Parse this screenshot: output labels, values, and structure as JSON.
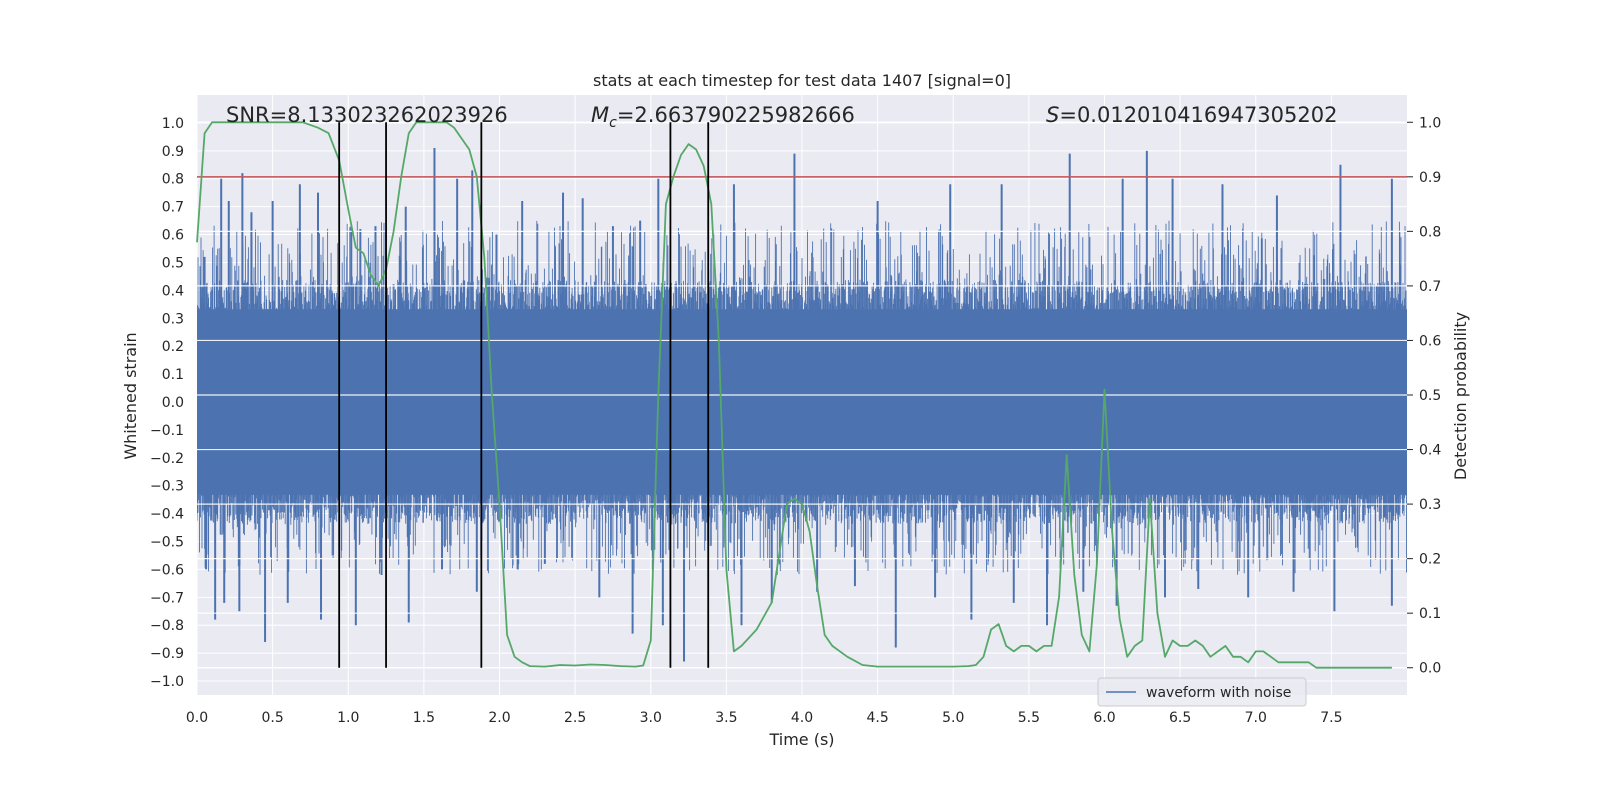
{
  "chart_data": {
    "type": "line",
    "title": "stats at each timestep for test data 1407 [signal=0]",
    "xlabel": "Time (s)",
    "ylabel_left": "Whitened strain",
    "ylabel_right": "Detection probability",
    "xlim": [
      0.0,
      8.0
    ],
    "ylim_left": [
      -1.05,
      1.1
    ],
    "ylim_right": [
      -0.05,
      1.05
    ],
    "xticks": [
      0.0,
      0.5,
      1.0,
      1.5,
      2.0,
      2.5,
      3.0,
      3.5,
      4.0,
      4.5,
      5.0,
      5.5,
      6.0,
      6.5,
      7.0,
      7.5
    ],
    "xtick_labels": [
      "0.0",
      "0.5",
      "1.0",
      "1.5",
      "2.0",
      "2.5",
      "3.0",
      "3.5",
      "4.0",
      "4.5",
      "5.0",
      "5.5",
      "6.0",
      "6.5",
      "7.0",
      "7.5"
    ],
    "yticks_left": [
      -1.0,
      -0.9,
      -0.8,
      -0.7,
      -0.6,
      -0.5,
      -0.4,
      -0.3,
      -0.2,
      -0.1,
      0.0,
      0.1,
      0.2,
      0.3,
      0.4,
      0.5,
      0.6,
      0.7,
      0.8,
      0.9,
      1.0
    ],
    "ytick_labels_left": [
      "−1.0",
      "−0.9",
      "−0.8",
      "−0.7",
      "−0.6",
      "−0.5",
      "−0.4",
      "−0.3",
      "−0.2",
      "−0.1",
      "0.0",
      "0.1",
      "0.2",
      "0.3",
      "0.4",
      "0.5",
      "0.6",
      "0.7",
      "0.8",
      "0.9",
      "1.0"
    ],
    "yticks_right": [
      0.0,
      0.1,
      0.2,
      0.3,
      0.4,
      0.5,
      0.6,
      0.7,
      0.8,
      0.9,
      1.0
    ],
    "ytick_labels_right": [
      "0.0",
      "0.1",
      "0.2",
      "0.3",
      "0.4",
      "0.5",
      "0.6",
      "0.7",
      "0.8",
      "0.9",
      "1.0"
    ],
    "grid": true,
    "legend_position": "lower-right",
    "annotations": {
      "snr": "SNR=8.133023262023926",
      "mc_symbol": "M",
      "mc_sub": "c",
      "mc_value": "=2.663790225982666",
      "s_symbol": "S",
      "s_value": "=0.012010416947305202"
    },
    "threshold": {
      "axis": "right",
      "value": 0.9,
      "color": "#c44e52"
    },
    "vertical_lines": {
      "x": [
        0.94,
        1.25,
        1.88,
        3.13,
        3.38
      ],
      "y_range_right": [
        0.0,
        1.0
      ],
      "color": "#000000"
    },
    "series": [
      {
        "name": "waveform with noise",
        "axis": "left",
        "color": "#4c72b0",
        "envelope_note": "dense noise bars",
        "bulk_amplitude": 0.35,
        "peak_x": [
          0.05,
          0.16,
          0.21,
          0.3,
          0.36,
          0.5,
          0.68,
          0.8,
          1.02,
          1.08,
          1.18,
          1.38,
          1.57,
          1.72,
          1.82,
          1.98,
          2.15,
          2.42,
          2.55,
          2.75,
          2.93,
          3.05,
          3.55,
          3.95,
          4.5,
          4.98,
          5.32,
          5.77,
          6.12,
          6.28,
          6.45,
          6.78,
          7.14,
          7.56,
          7.9
        ],
        "peak_y": [
          0.52,
          0.8,
          0.72,
          0.82,
          0.68,
          0.72,
          0.78,
          0.75,
          0.63,
          0.62,
          0.63,
          0.7,
          0.91,
          0.8,
          0.83,
          0.6,
          0.72,
          0.75,
          0.73,
          0.63,
          0.65,
          0.8,
          0.78,
          0.89,
          0.72,
          0.78,
          0.78,
          0.89,
          0.8,
          0.9,
          0.8,
          0.78,
          0.74,
          0.85,
          0.8
        ],
        "trough_x": [
          0.06,
          0.12,
          0.18,
          0.28,
          0.45,
          0.6,
          0.82,
          1.05,
          1.22,
          1.4,
          1.62,
          1.85,
          2.12,
          2.3,
          2.66,
          2.88,
          3.08,
          3.22,
          3.6,
          3.8,
          4.1,
          4.35,
          4.62,
          4.88,
          5.12,
          5.4,
          5.62,
          5.86,
          6.08,
          6.4,
          6.62,
          6.95,
          7.25,
          7.52,
          7.9
        ],
        "trough_y": [
          -0.6,
          -0.78,
          -0.72,
          -0.75,
          -0.86,
          -0.72,
          -0.78,
          -0.8,
          -0.62,
          -0.79,
          -0.6,
          -0.68,
          -0.6,
          -0.58,
          -0.7,
          -0.83,
          -0.8,
          -0.93,
          -0.8,
          -0.72,
          -0.68,
          -0.66,
          -0.88,
          -0.7,
          -0.78,
          -0.72,
          -0.8,
          -0.68,
          -0.73,
          -0.7,
          -0.67,
          -0.7,
          -0.68,
          -0.75,
          -0.73
        ]
      },
      {
        "name": "",
        "axis": "right",
        "color": "#55a868",
        "x": [
          0.0,
          0.05,
          0.1,
          0.2,
          0.3,
          0.4,
          0.5,
          0.6,
          0.7,
          0.8,
          0.87,
          0.94,
          1.0,
          1.05,
          1.1,
          1.15,
          1.2,
          1.25,
          1.3,
          1.35,
          1.4,
          1.45,
          1.5,
          1.55,
          1.6,
          1.65,
          1.7,
          1.75,
          1.8,
          1.85,
          1.9,
          1.95,
          2.0,
          2.05,
          2.1,
          2.15,
          2.2,
          2.3,
          2.4,
          2.5,
          2.6,
          2.7,
          2.8,
          2.9,
          2.95,
          3.0,
          3.05,
          3.1,
          3.15,
          3.2,
          3.25,
          3.3,
          3.35,
          3.4,
          3.45,
          3.5,
          3.55,
          3.6,
          3.7,
          3.8,
          3.9,
          3.95,
          4.0,
          4.05,
          4.1,
          4.15,
          4.2,
          4.3,
          4.4,
          4.5,
          4.6,
          4.7,
          4.8,
          4.9,
          5.0,
          5.1,
          5.15,
          5.2,
          5.25,
          5.3,
          5.35,
          5.4,
          5.45,
          5.5,
          5.55,
          5.6,
          5.65,
          5.7,
          5.75,
          5.8,
          5.85,
          5.9,
          5.95,
          6.0,
          6.05,
          6.1,
          6.15,
          6.2,
          6.25,
          6.3,
          6.35,
          6.4,
          6.45,
          6.5,
          6.55,
          6.6,
          6.65,
          6.7,
          6.75,
          6.8,
          6.85,
          6.9,
          6.95,
          7.0,
          7.05,
          7.1,
          7.15,
          7.2,
          7.25,
          7.3,
          7.35,
          7.4,
          7.5,
          7.6,
          7.7,
          7.8,
          7.9
        ],
        "y": [
          0.78,
          0.98,
          1.0,
          1.0,
          1.0,
          1.0,
          1.0,
          1.0,
          1.0,
          0.99,
          0.98,
          0.93,
          0.84,
          0.77,
          0.76,
          0.72,
          0.7,
          0.73,
          0.8,
          0.9,
          0.98,
          1.0,
          1.0,
          1.0,
          1.0,
          1.0,
          0.99,
          0.97,
          0.95,
          0.9,
          0.75,
          0.5,
          0.3,
          0.06,
          0.02,
          0.01,
          0.003,
          0.002,
          0.005,
          0.004,
          0.006,
          0.005,
          0.003,
          0.002,
          0.004,
          0.05,
          0.5,
          0.85,
          0.9,
          0.94,
          0.96,
          0.95,
          0.92,
          0.85,
          0.6,
          0.18,
          0.03,
          0.04,
          0.07,
          0.12,
          0.3,
          0.31,
          0.3,
          0.25,
          0.15,
          0.06,
          0.04,
          0.02,
          0.005,
          0.002,
          0.002,
          0.002,
          0.002,
          0.002,
          0.002,
          0.003,
          0.005,
          0.02,
          0.07,
          0.08,
          0.04,
          0.03,
          0.04,
          0.04,
          0.03,
          0.04,
          0.04,
          0.13,
          0.39,
          0.17,
          0.06,
          0.03,
          0.19,
          0.51,
          0.25,
          0.09,
          0.02,
          0.04,
          0.05,
          0.31,
          0.1,
          0.02,
          0.05,
          0.04,
          0.04,
          0.05,
          0.04,
          0.02,
          0.03,
          0.04,
          0.02,
          0.02,
          0.01,
          0.03,
          0.03,
          0.02,
          0.01,
          0.01,
          0.01,
          0.01,
          0.01,
          0.0,
          0.0,
          0.0,
          0.0,
          0.0,
          0.0
        ]
      }
    ]
  }
}
